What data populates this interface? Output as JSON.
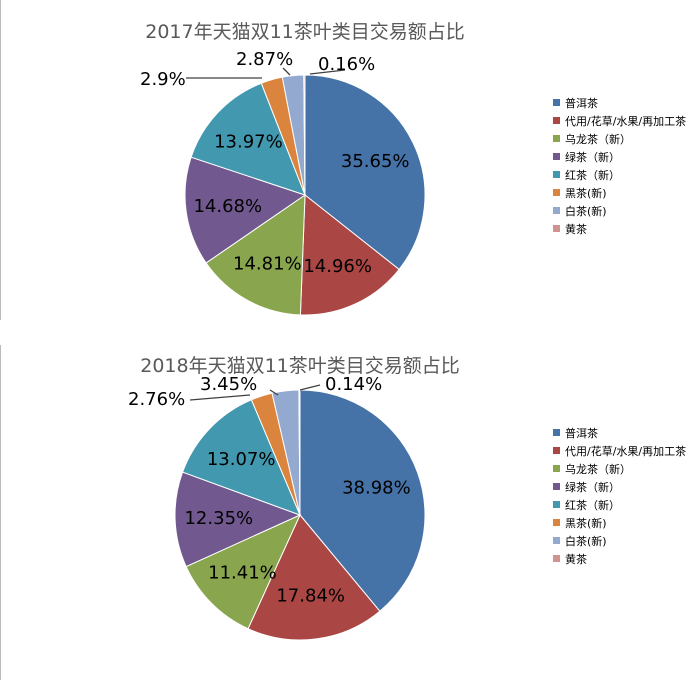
{
  "chart_data": [
    {
      "type": "pie",
      "title": "2017年天猫双11茶叶类目交易额占比",
      "categories": [
        "普洱茶",
        "代用/花草/水果/再加工茶",
        "乌龙茶（新）",
        "绿茶（新）",
        "红茶（新）",
        "黑茶(新)",
        "白茶(新)",
        "黄茶"
      ],
      "values": [
        35.65,
        14.96,
        14.81,
        14.68,
        13.97,
        2.9,
        2.87,
        0.16
      ],
      "labels": [
        "35.65%",
        "14.96%",
        "14.81%",
        "14.68%",
        "13.97%",
        "2.9%",
        "2.87%",
        "0.16%"
      ],
      "legend": "right",
      "start": "top, clockwise"
    },
    {
      "type": "pie",
      "title": "2018年天猫双11茶叶类目交易额占比",
      "categories": [
        "普洱茶",
        "代用/花草/水果/再加工茶",
        "乌龙茶（新）",
        "绿茶（新）",
        "红茶（新）",
        "黑茶(新)",
        "白茶(新)",
        "黄茶"
      ],
      "values": [
        38.98,
        17.84,
        11.41,
        12.35,
        13.07,
        2.76,
        3.45,
        0.14
      ],
      "labels": [
        "38.98%",
        "17.84%",
        "11.41%",
        "12.35%",
        "13.07%",
        "2.76%",
        "3.45%",
        "0.14%"
      ],
      "legend": "right",
      "start": "top, clockwise"
    }
  ],
  "colors": [
    "#4572A7",
    "#AA4643",
    "#89A54E",
    "#71588F",
    "#4198AF",
    "#DB843D",
    "#93A9CF",
    "#D19392"
  ]
}
